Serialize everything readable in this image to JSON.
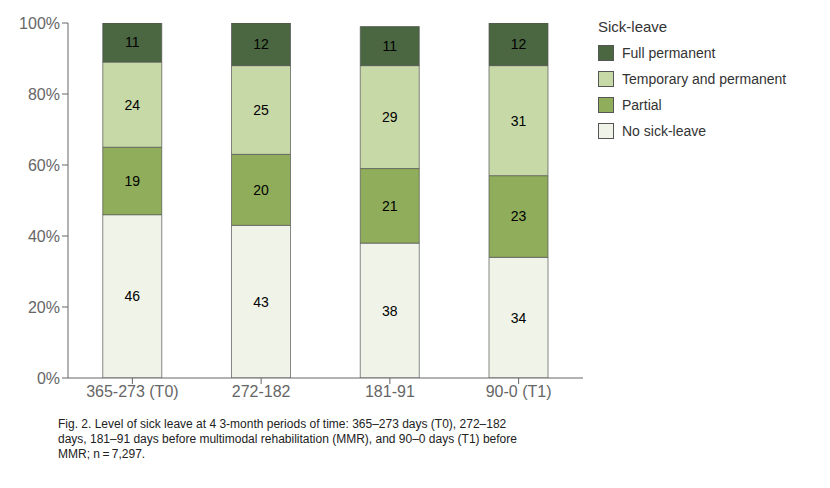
{
  "chart_data": {
    "type": "bar",
    "stacked": true,
    "data_labels": true,
    "grid": false,
    "legend": "right",
    "legend_title": "Sick-leave",
    "categories": [
      "365-273 (T0)",
      "272-182",
      "181-91",
      "90-0 (T1)"
    ],
    "series": [
      {
        "name": "No sick-leave",
        "color": "#f0f4e8",
        "values": [
          46,
          43,
          38,
          34
        ]
      },
      {
        "name": "Partial",
        "color": "#8fad5a",
        "values": [
          19,
          20,
          21,
          23
        ]
      },
      {
        "name": "Temporary and permanent",
        "color": "#c8d9a8",
        "values": [
          24,
          25,
          29,
          31
        ]
      },
      {
        "name": "Full permanent",
        "color": "#4a6741",
        "values": [
          11,
          12,
          11,
          12
        ]
      }
    ],
    "ylim": [
      0,
      100
    ],
    "yticks": [
      {
        "value": 0,
        "label": "0%"
      },
      {
        "value": 20,
        "label": "20%"
      },
      {
        "value": 40,
        "label": "40%"
      },
      {
        "value": 60,
        "label": "60%"
      },
      {
        "value": 80,
        "label": "80%"
      },
      {
        "value": 100,
        "label": "100%"
      }
    ],
    "annotations": [
      "Fig. 2. Level of sick leave at 4 3-month periods of time: 365–273 days (T0), 272–182\ndays, 181–91 days before multimodal rehabilitation (MMR), and 90–0 days (T1) before\nMMR; n = 7,297."
    ]
  }
}
